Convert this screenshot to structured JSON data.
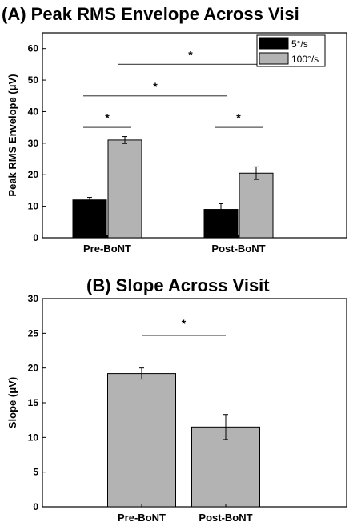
{
  "chart_data": [
    {
      "type": "bar",
      "title": "(A) Peak RMS Envelope Across Visi",
      "xlabel": "",
      "ylabel": "Peak RMS Envelope (μV)",
      "ylim": [
        0,
        65
      ],
      "yticks": [
        0,
        10,
        20,
        30,
        40,
        50,
        60
      ],
      "categories": [
        "Pre-BoNT",
        "Post-BoNT"
      ],
      "series": [
        {
          "name": "5°/s",
          "color": "#000000",
          "values": [
            12,
            9
          ],
          "errors": [
            0.8,
            1.8
          ]
        },
        {
          "name": "100°/s",
          "color": "#b3b3b3",
          "values": [
            31,
            20.5
          ],
          "errors": [
            1.1,
            2.0
          ]
        }
      ],
      "legend_position": "top-right",
      "significance": [
        {
          "label": "*",
          "from_category": 0,
          "from_series": 0,
          "to_category": 0,
          "to_series": 1,
          "y": 35
        },
        {
          "label": "*",
          "from_category": 1,
          "from_series": 0,
          "to_category": 1,
          "to_series": 1,
          "y": 35
        },
        {
          "label": "*",
          "from_category": 0,
          "from_series": 0,
          "to_category": 1,
          "to_series": 0,
          "y": 45
        },
        {
          "label": "*",
          "from_category": 0,
          "from_series": 1,
          "to_category": 1,
          "to_series": 1,
          "y": 55
        }
      ],
      "grid": false
    },
    {
      "type": "bar",
      "title": "(B) Slope Across Visit",
      "xlabel": "",
      "ylabel": "Slope (μV)",
      "ylim": [
        0,
        30
      ],
      "yticks": [
        0,
        5,
        10,
        15,
        20,
        25,
        30
      ],
      "categories": [
        "Pre-BoNT",
        "Post-BoNT"
      ],
      "series": [
        {
          "color": "#b3b3b3",
          "values": [
            19.2,
            11.5
          ],
          "errors": [
            0.8,
            1.8
          ]
        }
      ],
      "significance": [
        {
          "label": "*",
          "from_category": 0,
          "to_category": 1,
          "y": 24.7
        }
      ],
      "grid": false
    }
  ]
}
